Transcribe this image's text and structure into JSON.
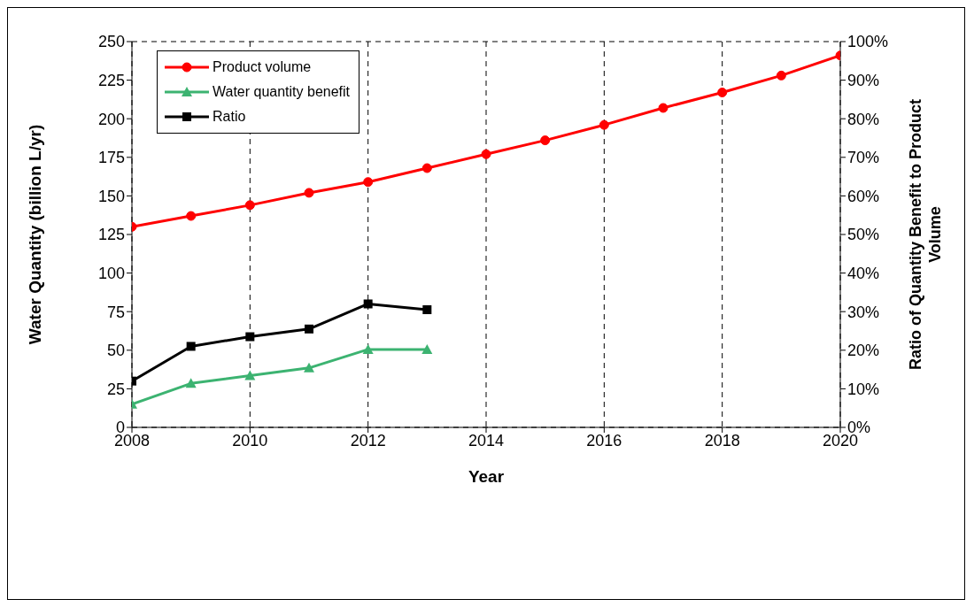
{
  "chart_data": {
    "type": "line",
    "xlabel": "Year",
    "ylabel": "Water Quantity (billion L/yr)",
    "y2label": "Ratio of Quantity Benefit to Product Volume",
    "x": [
      2008,
      2009,
      2010,
      2011,
      2012,
      2013,
      2014,
      2015,
      2016,
      2017,
      2018,
      2019,
      2020
    ],
    "series": [
      {
        "name": "Product volume",
        "color": "#ff0000",
        "marker": "circle",
        "values": [
          130,
          137,
          144,
          152,
          159,
          168,
          177,
          186,
          196,
          207,
          217,
          228,
          241
        ]
      },
      {
        "name": "Water quantity benefit",
        "color": "#3cb371",
        "marker": "triangle",
        "values": [
          15,
          28.5,
          33.5,
          38.5,
          50.5,
          50.5,
          null,
          null,
          null,
          null,
          null,
          null,
          null
        ]
      },
      {
        "name": "Ratio",
        "color": "#000000",
        "marker": "square",
        "axis": "y2",
        "values": [
          12,
          21,
          23.5,
          25.5,
          32,
          30.5,
          null,
          null,
          null,
          null,
          null,
          null,
          null
        ]
      }
    ],
    "xlim": [
      2008,
      2020
    ],
    "xticks": [
      2008,
      2010,
      2012,
      2014,
      2016,
      2018,
      2020
    ],
    "ylim": [
      0,
      250
    ],
    "yticks": [
      0,
      25,
      50,
      75,
      100,
      125,
      150,
      175,
      200,
      225,
      250
    ],
    "y2lim": [
      0,
      100
    ],
    "y2ticks": [
      {
        "value": 0,
        "label": "0%"
      },
      {
        "value": 10,
        "label": "10%"
      },
      {
        "value": 20,
        "label": "20%"
      },
      {
        "value": 30,
        "label": "30%"
      },
      {
        "value": 40,
        "label": "40%"
      },
      {
        "value": 50,
        "label": "50%"
      },
      {
        "value": 60,
        "label": "60%"
      },
      {
        "value": 70,
        "label": "70%"
      },
      {
        "value": 80,
        "label": "80%"
      },
      {
        "value": 90,
        "label": "90%"
      },
      {
        "value": 100,
        "label": "100%"
      }
    ],
    "grid": true,
    "legend": "top left",
    "line_style": "solid"
  }
}
